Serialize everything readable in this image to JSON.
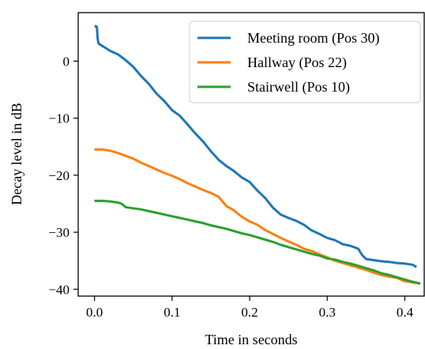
{
  "chart_data": {
    "type": "line",
    "title": "",
    "xlabel": "Time in seconds",
    "ylabel": "Decay level in dB",
    "xlim": [
      -0.021,
      0.425
    ],
    "ylim": [
      -41.2,
      8.5
    ],
    "xticks": [
      0.0,
      0.1,
      0.2,
      0.3,
      0.4
    ],
    "xtick_labels": [
      "0.0",
      "0.1",
      "0.2",
      "0.3",
      "0.4"
    ],
    "yticks": [
      0,
      -10,
      -20,
      -30,
      -40
    ],
    "ytick_labels": [
      "0",
      "−10",
      "−20",
      "−30",
      "−40"
    ],
    "grid": false,
    "legend_position": "top-right",
    "series": [
      {
        "name": "Meeting room (Pos 30)",
        "color": "#1f77b4",
        "points": [
          [
            0.0,
            6.1
          ],
          [
            0.002,
            6.1
          ],
          [
            0.003,
            6.0
          ],
          [
            0.004,
            4.0
          ],
          [
            0.005,
            3.2
          ],
          [
            0.006,
            3.0
          ],
          [
            0.012,
            2.5
          ],
          [
            0.02,
            1.8
          ],
          [
            0.03,
            1.2
          ],
          [
            0.04,
            0.2
          ],
          [
            0.05,
            -1.0
          ],
          [
            0.06,
            -2.6
          ],
          [
            0.07,
            -4.0
          ],
          [
            0.08,
            -5.7
          ],
          [
            0.09,
            -7.0
          ],
          [
            0.1,
            -8.6
          ],
          [
            0.11,
            -9.6
          ],
          [
            0.12,
            -11.1
          ],
          [
            0.13,
            -12.7
          ],
          [
            0.14,
            -14.1
          ],
          [
            0.15,
            -15.8
          ],
          [
            0.16,
            -17.3
          ],
          [
            0.17,
            -18.4
          ],
          [
            0.18,
            -19.3
          ],
          [
            0.19,
            -20.4
          ],
          [
            0.2,
            -21.2
          ],
          [
            0.21,
            -22.7
          ],
          [
            0.22,
            -24.0
          ],
          [
            0.23,
            -25.7
          ],
          [
            0.24,
            -26.9
          ],
          [
            0.25,
            -27.5
          ],
          [
            0.26,
            -28.0
          ],
          [
            0.27,
            -28.7
          ],
          [
            0.28,
            -29.7
          ],
          [
            0.29,
            -30.3
          ],
          [
            0.3,
            -31.0
          ],
          [
            0.31,
            -31.4
          ],
          [
            0.32,
            -32.1
          ],
          [
            0.33,
            -32.4
          ],
          [
            0.34,
            -32.9
          ],
          [
            0.345,
            -34.0
          ],
          [
            0.35,
            -34.7
          ],
          [
            0.36,
            -34.9
          ],
          [
            0.37,
            -35.1
          ],
          [
            0.38,
            -35.2
          ],
          [
            0.39,
            -35.4
          ],
          [
            0.4,
            -35.5
          ],
          [
            0.41,
            -35.7
          ],
          [
            0.415,
            -36.1
          ]
        ]
      },
      {
        "name": "Hallway (Pos 22)",
        "color": "#ff7f0e",
        "points": [
          [
            0.0,
            -15.5
          ],
          [
            0.01,
            -15.5
          ],
          [
            0.02,
            -15.7
          ],
          [
            0.03,
            -16.1
          ],
          [
            0.04,
            -16.6
          ],
          [
            0.05,
            -17.1
          ],
          [
            0.06,
            -17.8
          ],
          [
            0.07,
            -18.4
          ],
          [
            0.08,
            -19.0
          ],
          [
            0.09,
            -19.6
          ],
          [
            0.1,
            -20.1
          ],
          [
            0.11,
            -20.7
          ],
          [
            0.12,
            -21.4
          ],
          [
            0.13,
            -22.0
          ],
          [
            0.14,
            -22.6
          ],
          [
            0.15,
            -23.1
          ],
          [
            0.16,
            -23.8
          ],
          [
            0.165,
            -24.6
          ],
          [
            0.17,
            -25.4
          ],
          [
            0.18,
            -26.2
          ],
          [
            0.19,
            -27.3
          ],
          [
            0.2,
            -28.1
          ],
          [
            0.21,
            -28.7
          ],
          [
            0.22,
            -29.6
          ],
          [
            0.23,
            -30.3
          ],
          [
            0.24,
            -31.0
          ],
          [
            0.25,
            -31.6
          ],
          [
            0.26,
            -32.2
          ],
          [
            0.27,
            -32.9
          ],
          [
            0.28,
            -33.3
          ],
          [
            0.29,
            -33.9
          ],
          [
            0.3,
            -34.4
          ],
          [
            0.31,
            -35.0
          ],
          [
            0.32,
            -35.4
          ],
          [
            0.33,
            -35.8
          ],
          [
            0.34,
            -36.2
          ],
          [
            0.35,
            -36.6
          ],
          [
            0.36,
            -37.1
          ],
          [
            0.37,
            -37.5
          ],
          [
            0.38,
            -37.8
          ],
          [
            0.39,
            -38.0
          ],
          [
            0.395,
            -38.3
          ],
          [
            0.4,
            -38.6
          ],
          [
            0.41,
            -38.8
          ],
          [
            0.42,
            -39.0
          ]
        ]
      },
      {
        "name": "Stairwell (Pos 10)",
        "color": "#2ca02c",
        "points": [
          [
            0.0,
            -24.5
          ],
          [
            0.01,
            -24.5
          ],
          [
            0.02,
            -24.6
          ],
          [
            0.03,
            -24.8
          ],
          [
            0.035,
            -25.0
          ],
          [
            0.04,
            -25.6
          ],
          [
            0.05,
            -25.8
          ],
          [
            0.06,
            -26.0
          ],
          [
            0.07,
            -26.3
          ],
          [
            0.08,
            -26.6
          ],
          [
            0.09,
            -26.9
          ],
          [
            0.1,
            -27.2
          ],
          [
            0.11,
            -27.5
          ],
          [
            0.12,
            -27.8
          ],
          [
            0.13,
            -28.1
          ],
          [
            0.14,
            -28.4
          ],
          [
            0.15,
            -28.8
          ],
          [
            0.16,
            -29.1
          ],
          [
            0.17,
            -29.4
          ],
          [
            0.18,
            -29.8
          ],
          [
            0.19,
            -30.2
          ],
          [
            0.2,
            -30.5
          ],
          [
            0.21,
            -30.9
          ],
          [
            0.22,
            -31.3
          ],
          [
            0.23,
            -31.7
          ],
          [
            0.24,
            -32.2
          ],
          [
            0.25,
            -32.6
          ],
          [
            0.26,
            -33.0
          ],
          [
            0.27,
            -33.4
          ],
          [
            0.28,
            -33.8
          ],
          [
            0.29,
            -34.1
          ],
          [
            0.3,
            -34.6
          ],
          [
            0.31,
            -34.8
          ],
          [
            0.32,
            -35.2
          ],
          [
            0.33,
            -35.5
          ],
          [
            0.34,
            -35.9
          ],
          [
            0.35,
            -36.3
          ],
          [
            0.36,
            -36.7
          ],
          [
            0.37,
            -37.2
          ],
          [
            0.38,
            -37.5
          ],
          [
            0.39,
            -37.9
          ],
          [
            0.4,
            -38.3
          ],
          [
            0.41,
            -38.7
          ],
          [
            0.42,
            -39.0
          ]
        ]
      }
    ]
  }
}
